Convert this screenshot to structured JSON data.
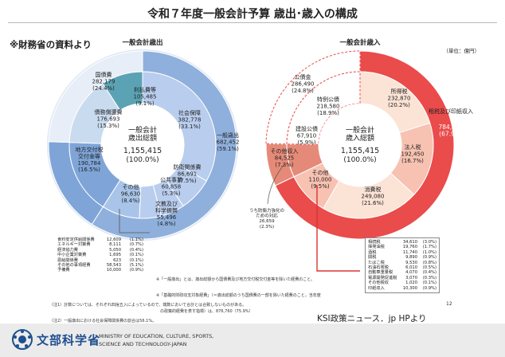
{
  "title": "令和７年度一般会計予算 歳出･歳入の構成",
  "source_note": "※財務省の資料より",
  "page_number": "12",
  "credit": "KSI政策ニュース．jp HPより",
  "ministry": {
    "name_ja": "文部科学省",
    "name_en_line1": "MINISTRY OF EDUCATION, CULTURE, SPORTS,",
    "name_en_line2": "SCIENCE AND TECHNOLOGY-JAPAN"
  },
  "colors": {
    "exp_outer": "#8fb0dc",
    "exp_inner": "#b9cdee",
    "exp_debt": "#c9dbef",
    "exp_local": "#7fa5d8",
    "exp_other": "#a8c4e8",
    "exp_pale": "#e7eef8",
    "exp_teal": "#5ba3b4",
    "rev_tax": "#ea4b4b",
    "rev_tax_inner": "#f7c2b2",
    "rev_income_inner": "#fbe3d6",
    "rev_debt": "#ffffff",
    "rev_other": "#e58a78"
  },
  "chart_data": [
    {
      "type": "pie",
      "title": "一般会計歳出",
      "center_label": "一般会計\n歳出総額",
      "center_value": "1,155,415",
      "center_pct": "(100.0%)",
      "outer_ring": [
        {
          "label": "一般歳出",
          "value": 682452,
          "pct": 59.1
        },
        {
          "label": "地方交付税交付金等",
          "value": 190784,
          "pct": 16.5
        },
        {
          "label": "国債費",
          "value": 282179,
          "pct": 24.4
        }
      ],
      "inner_ring": [
        {
          "label": "社会保障",
          "value": 382778,
          "pct": 33.1
        },
        {
          "label": "防衛関係費",
          "value": 86691,
          "pct": 7.5
        },
        {
          "label": "公共事業",
          "value": 60858,
          "pct": 5.3
        },
        {
          "label": "文教及び科学振興",
          "value": 55496,
          "pct": 4.8
        },
        {
          "label": "その他",
          "value": 96630,
          "pct": 8.4
        },
        {
          "label": "地方交付税交付金等",
          "value": 190784,
          "pct": 16.5
        },
        {
          "label": "債務償還費",
          "value": 176693,
          "pct": 15.3
        },
        {
          "label": "利払費等",
          "value": 105485,
          "pct": 9.1
        }
      ],
      "other_breakdown": [
        {
          "label": "食料安定供給関係費",
          "value": "12,609",
          "pct": "(1.1%)"
        },
        {
          "label": "エネルギー対策費",
          "value": "8,111",
          "pct": "(0.7%)"
        },
        {
          "label": "経済協力費",
          "value": "5,050",
          "pct": "(0.4%)"
        },
        {
          "label": "中小企業対策費",
          "value": "1,695",
          "pct": "(0.1%)"
        },
        {
          "label": "恩給関係費",
          "value": "623",
          "pct": "(0.1%)"
        },
        {
          "label": "その他の事項経費",
          "value": "58,543",
          "pct": "(5.1%)"
        },
        {
          "label": "予備費",
          "value": "10,000",
          "pct": "(0.9%)"
        }
      ]
    },
    {
      "type": "pie",
      "title": "一般会計歳入",
      "unit": "（単位：億円）",
      "center_label": "一般会計\n歳入総額",
      "center_value": "1,155,415",
      "center_pct": "(100.0%)",
      "outer_ring": [
        {
          "label": "租税及び印紙収入",
          "value": 784400,
          "pct": 67.9
        },
        {
          "label": "その他収入",
          "value": 84525,
          "pct": 7.3
        },
        {
          "label": "公債金",
          "value": 286490,
          "pct": 24.8
        }
      ],
      "inner_ring": [
        {
          "label": "所得税",
          "value": 232870,
          "pct": 20.2
        },
        {
          "label": "法人税",
          "value": 192450,
          "pct": 16.7
        },
        {
          "label": "消費税",
          "value": 249080,
          "pct": 21.6
        },
        {
          "label": "その他",
          "value": 110000,
          "pct": 9.5
        },
        {
          "label": "その他収入",
          "value": 84525,
          "pct": 7.3
        },
        {
          "label": "建設公債",
          "value": 67910,
          "pct": 5.9
        },
        {
          "label": "特例公債",
          "value": 218580,
          "pct": 18.9
        }
      ],
      "callout_label": "うち防衛力強化のための対応",
      "callout_value": "26,659",
      "callout_pct": "(2.3%)",
      "other_breakdown": [
        {
          "label": "相続税",
          "value": "34,610",
          "pct": "(3.0%)"
        },
        {
          "label": "揮発油税",
          "value": "19,760",
          "pct": "(1.7%)"
        },
        {
          "label": "酒税",
          "value": "11,740",
          "pct": "(1.0%)"
        },
        {
          "label": "関税",
          "value": "9,890",
          "pct": "(0.9%)"
        },
        {
          "label": "たばこ税",
          "value": "9,530",
          "pct": "(0.8%)"
        },
        {
          "label": "石油石炭税",
          "value": "6,010",
          "pct": "(0.5%)"
        },
        {
          "label": "自動車重量税",
          "value": "4,070",
          "pct": "(0.4%)"
        },
        {
          "label": "電源開発促進税",
          "value": "3,070",
          "pct": "(0.3%)"
        },
        {
          "label": "その他税収",
          "value": "1,020",
          "pct": "(0.1%)"
        },
        {
          "label": "印紙収入",
          "value": "10,300",
          "pct": "(0.9%)"
        }
      ]
    }
  ],
  "notes_mid": [
    "※「一般歳出」とは、歳出総額から国債費及び地方交付税交付金等を除いた経費のこと。",
    "※「基礎的財政収支対象経費」（＝歳出総額のうち国債費の一部を除いた経費のこと。当年度",
    "　の政策的経費を表す指標）は、876,760（75.9%）"
  ],
  "notes_bottom": [
    "（注1）計数については、それぞれ四捨五入によっているので、端数において合計とは合致しないものがある。",
    "（注2）一般歳出における社会保障関係費の割合は56.1%。"
  ]
}
